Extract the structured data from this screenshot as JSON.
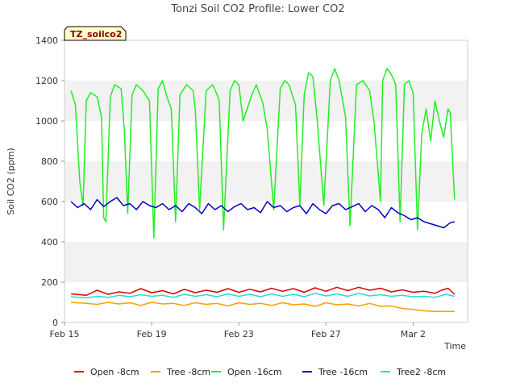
{
  "chart_data": {
    "type": "line",
    "title": "Tonzi Soil CO2 Profile: Lower CO2",
    "xlabel": "Time",
    "ylabel": "Soil CO2 (ppm)",
    "badge": "TZ_soilco2",
    "xlim": [
      0,
      18.5
    ],
    "ylim": [
      0,
      1400
    ],
    "xticks": [
      {
        "value": 0,
        "label": "Feb 15"
      },
      {
        "value": 4,
        "label": "Feb 19"
      },
      {
        "value": 8,
        "label": "Feb 23"
      },
      {
        "value": 12,
        "label": "Feb 27"
      },
      {
        "value": 16,
        "label": "Mar 2"
      }
    ],
    "yticks": [
      0,
      200,
      400,
      600,
      800,
      1000,
      1200,
      1400
    ],
    "grid": true,
    "legend_position": "bottom",
    "series": [
      {
        "name": "Open -8cm",
        "color": "#dd0000",
        "x": [
          0.3,
          1,
          1.5,
          2,
          2.5,
          3,
          3.5,
          4,
          4.5,
          5,
          5.5,
          6,
          6.5,
          7,
          7.5,
          8,
          8.5,
          9,
          9.5,
          10,
          10.5,
          11,
          11.5,
          12,
          12.5,
          13,
          13.5,
          14,
          14.5,
          15,
          15.5,
          16,
          16.5,
          17,
          17.3,
          17.6,
          17.9
        ],
        "y": [
          142,
          135,
          160,
          140,
          152,
          145,
          168,
          148,
          158,
          142,
          165,
          148,
          160,
          150,
          168,
          150,
          165,
          152,
          170,
          155,
          168,
          150,
          172,
          155,
          175,
          158,
          175,
          160,
          170,
          152,
          162,
          150,
          155,
          145,
          160,
          170,
          140
        ]
      },
      {
        "name": "Tree -8cm",
        "color": "#f5a000",
        "x": [
          0.3,
          1,
          1.5,
          2,
          2.5,
          3,
          3.5,
          4,
          4.5,
          5,
          5.5,
          6,
          6.5,
          7,
          7.5,
          8,
          8.5,
          9,
          9.5,
          10,
          10.5,
          11,
          11.5,
          12,
          12.5,
          13,
          13.5,
          14,
          14.5,
          15,
          15.5,
          16,
          16.5,
          17,
          17.5,
          17.9
        ],
        "y": [
          100,
          95,
          90,
          100,
          92,
          98,
          85,
          100,
          92,
          95,
          85,
          98,
          90,
          95,
          82,
          98,
          90,
          95,
          85,
          98,
          88,
          92,
          80,
          98,
          88,
          92,
          82,
          95,
          80,
          82,
          70,
          65,
          58,
          55,
          55,
          55
        ]
      },
      {
        "name": "Open -16cm",
        "color": "#22ee22",
        "x": [
          0.3,
          0.5,
          0.7,
          0.85,
          1.0,
          1.2,
          1.5,
          1.7,
          1.8,
          1.9,
          2.1,
          2.3,
          2.6,
          2.75,
          2.9,
          3.1,
          3.3,
          3.6,
          3.9,
          4.1,
          4.3,
          4.5,
          4.7,
          4.9,
          5.1,
          5.3,
          5.6,
          5.9,
          6.0,
          6.2,
          6.5,
          6.8,
          7.0,
          7.1,
          7.3,
          7.6,
          7.8,
          8.0,
          8.2,
          8.6,
          8.8,
          9.1,
          9.3,
          9.6,
          9.9,
          10.1,
          10.3,
          10.6,
          10.8,
          11.0,
          11.2,
          11.4,
          11.6,
          11.9,
          12.2,
          12.4,
          12.6,
          12.9,
          13.1,
          13.4,
          13.7,
          14.0,
          14.2,
          14.5,
          14.6,
          14.8,
          15.0,
          15.2,
          15.4,
          15.6,
          15.8,
          16.0,
          16.2,
          16.4,
          16.6,
          16.8,
          17.0,
          17.2,
          17.4,
          17.6,
          17.7,
          17.9
        ],
        "y": [
          1150,
          1080,
          700,
          580,
          1100,
          1140,
          1120,
          1020,
          520,
          500,
          1120,
          1180,
          1160,
          950,
          540,
          1130,
          1180,
          1150,
          1100,
          420,
          1160,
          1200,
          1120,
          1060,
          500,
          1130,
          1180,
          1150,
          1060,
          560,
          1150,
          1180,
          1130,
          1100,
          460,
          1150,
          1200,
          1180,
          1000,
          1130,
          1180,
          1090,
          960,
          560,
          1160,
          1200,
          1180,
          1080,
          580,
          1130,
          1240,
          1220,
          1000,
          580,
          1200,
          1260,
          1200,
          1020,
          480,
          1180,
          1200,
          1150,
          1000,
          600,
          1200,
          1260,
          1230,
          1180,
          500,
          1180,
          1200,
          1140,
          460,
          940,
          1060,
          900,
          1100,
          1000,
          920,
          1060,
          1040,
          610
        ]
      },
      {
        "name": "Tree -16cm",
        "color": "#0000cc",
        "x": [
          0.3,
          0.6,
          0.9,
          1.2,
          1.5,
          1.8,
          2.1,
          2.4,
          2.7,
          3.0,
          3.3,
          3.6,
          3.9,
          4.2,
          4.5,
          4.8,
          5.1,
          5.4,
          5.7,
          6.0,
          6.3,
          6.6,
          6.9,
          7.2,
          7.5,
          7.8,
          8.1,
          8.4,
          8.7,
          9.0,
          9.3,
          9.6,
          9.9,
          10.2,
          10.5,
          10.8,
          11.1,
          11.4,
          11.7,
          12.0,
          12.3,
          12.6,
          12.9,
          13.2,
          13.5,
          13.8,
          14.1,
          14.4,
          14.7,
          15.0,
          15.3,
          15.6,
          15.9,
          16.2,
          16.5,
          16.8,
          17.1,
          17.4,
          17.7,
          17.9
        ],
        "y": [
          600,
          570,
          590,
          560,
          610,
          575,
          600,
          620,
          580,
          590,
          560,
          600,
          580,
          570,
          590,
          560,
          580,
          550,
          590,
          570,
          540,
          590,
          560,
          580,
          550,
          575,
          590,
          560,
          570,
          545,
          600,
          570,
          580,
          550,
          570,
          580,
          540,
          590,
          560,
          540,
          580,
          590,
          560,
          575,
          590,
          550,
          580,
          560,
          520,
          570,
          545,
          530,
          510,
          520,
          500,
          490,
          480,
          470,
          495,
          500
        ]
      },
      {
        "name": "Tree2 -8cm",
        "color": "#22dddd",
        "x": [
          0.3,
          1,
          1.5,
          2,
          2.5,
          3,
          3.5,
          4,
          4.5,
          5,
          5.5,
          6,
          6.5,
          7,
          7.5,
          8,
          8.5,
          9,
          9.5,
          10,
          10.5,
          11,
          11.5,
          12,
          12.5,
          13,
          13.5,
          14,
          14.5,
          15,
          15.5,
          16,
          16.5,
          17,
          17.5,
          17.9
        ],
        "y": [
          128,
          122,
          130,
          125,
          135,
          128,
          138,
          130,
          135,
          125,
          140,
          130,
          138,
          128,
          142,
          130,
          140,
          128,
          142,
          130,
          140,
          128,
          145,
          132,
          142,
          130,
          145,
          132,
          138,
          130,
          135,
          128,
          130,
          125,
          140,
          130
        ]
      }
    ]
  }
}
